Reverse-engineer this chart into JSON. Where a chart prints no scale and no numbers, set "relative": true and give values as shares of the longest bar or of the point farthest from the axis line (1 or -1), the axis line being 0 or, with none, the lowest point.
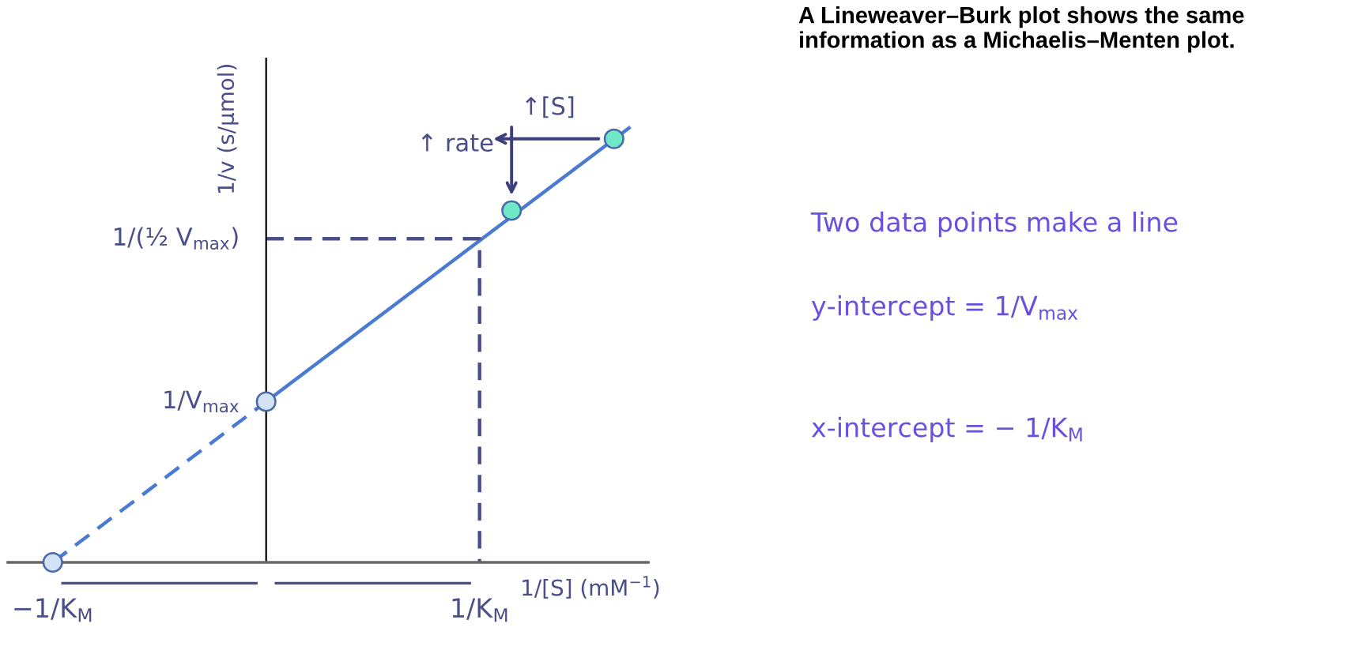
{
  "chart_data": {
    "type": "line",
    "relative": true,
    "title": "A Lineweaver–Burk plot shows the same information as a Michaelis–Menten plot.",
    "xlabel": "1/[S] (mM$^{−1}$)",
    "ylabel": "1/v (s/μmol)",
    "xlim": [
      -1.21,
      1.79
    ],
    "xticks": [
      {
        "value": -1,
        "label": "−1/K$_{M}$"
      },
      {
        "value": 1,
        "label": "1/K$_{M}$"
      }
    ],
    "series": [
      {
        "type": "line",
        "color": "#4a7bd0",
        "line_style": "dashed",
        "x": [
          -1,
          0
        ],
        "values": [
          0,
          0.37
        ]
      },
      {
        "type": "line",
        "color": "#4a7bd0",
        "line_style": "solid",
        "x": [
          0,
          1.7
        ],
        "values": [
          0.37,
          1.0
        ]
      },
      {
        "type": "line",
        "color": "#4a4f8a",
        "line_style": "dashed",
        "x": [
          0,
          1,
          1
        ],
        "values": [
          0.745,
          0.745,
          0
        ]
      },
      {
        "type": "scatter",
        "color": "#d3e2f5",
        "marker": "circle",
        "x": [
          -1,
          0
        ],
        "values": [
          0,
          0.37
        ]
      },
      {
        "type": "scatter",
        "color": "#6ee8c6",
        "marker": "circle",
        "x": [
          1.15,
          1.63
        ],
        "values": [
          0.81,
          0.975
        ]
      }
    ],
    "annotations": [
      {
        "text": "1/(½ V$_{max}$)",
        "x": 0,
        "y": 0.745
      },
      {
        "text": "1/V$_{max}$",
        "x": 0,
        "y": 0.37
      },
      {
        "text": "↑ rate",
        "x": 1.15,
        "y": 0.81
      },
      {
        "text": "↑[S]",
        "x": 1.63,
        "y": 0.975
      },
      "Two data points make a line",
      "y-intercept = 1/V$_{max}$",
      "x-intercept = − 1/K$_{M}$"
    ]
  }
}
